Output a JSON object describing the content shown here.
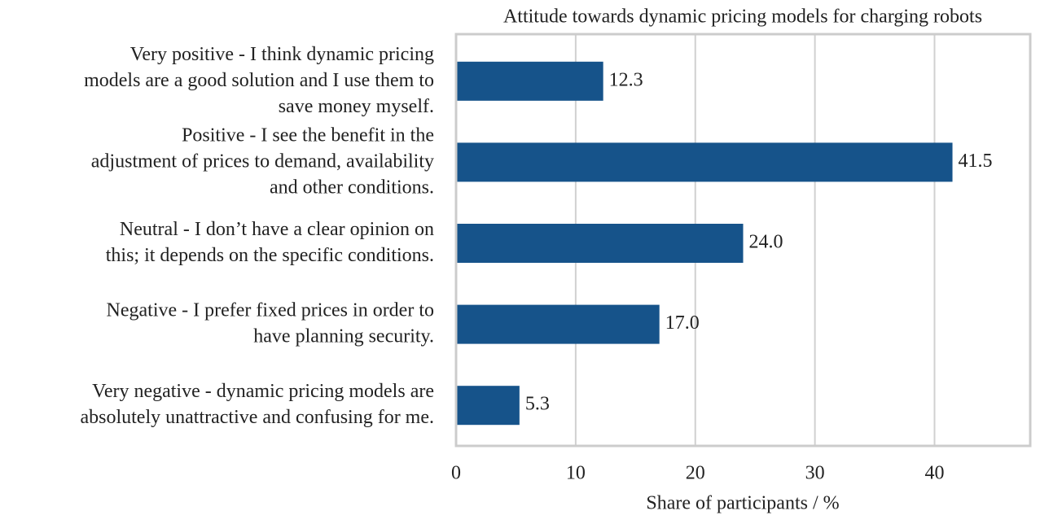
{
  "chart_data": {
    "type": "barh",
    "title": "Attitude towards dynamic pricing models for charging robots",
    "xlabel": "Share of participants / %",
    "categories": [
      "Very positive - I think dynamic pricing\nmodels are a good solution and I use them to\nsave money myself.",
      "Positive - I see the benefit in the\nadjustment of prices to demand, availability\nand other conditions.",
      "Neutral - I don’t have a clear opinion on\nthis; it depends on the specific conditions.",
      "Negative - I prefer fixed prices in order to\nhave planning security.",
      "Very negative - dynamic pricing models are\nabsolutely unattractive and confusing for me."
    ],
    "values": [
      12.3,
      41.5,
      24,
      17,
      5.3
    ],
    "value_labels": [
      "12.3",
      "41.5",
      "24.0",
      "17.0",
      "5.3"
    ],
    "color": "#16538a",
    "xlim": [
      0,
      48
    ],
    "xticks": [
      0,
      10,
      20,
      30,
      40
    ],
    "grid": true
  }
}
